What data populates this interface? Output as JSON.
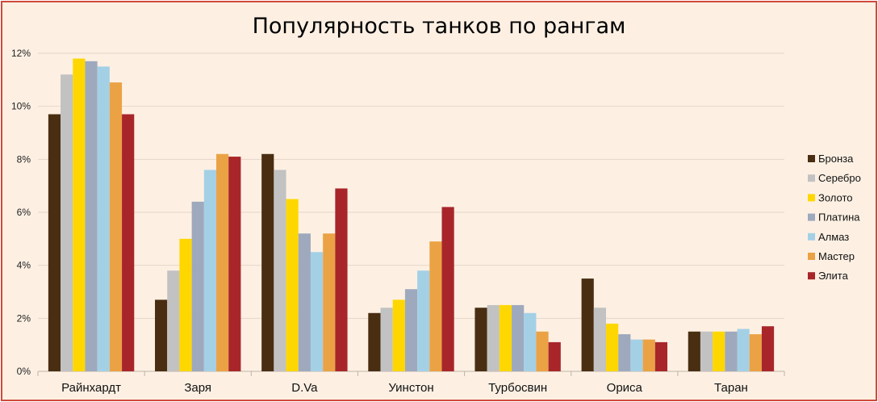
{
  "chart_data": {
    "type": "bar",
    "title": "Популярность танков по рангам",
    "categories": [
      "Райнхардт",
      "Заря",
      "D.Va",
      "Уинстон",
      "Турбосвин",
      "Ориса",
      "Таран"
    ],
    "series": [
      {
        "name": "Бронза",
        "color": "#4a2e12",
        "values": [
          9.7,
          2.7,
          8.2,
          2.2,
          2.4,
          3.5,
          1.5
        ]
      },
      {
        "name": "Серебро",
        "color": "#c2c2c2",
        "values": [
          11.2,
          3.8,
          7.6,
          2.4,
          2.5,
          2.4,
          1.5
        ]
      },
      {
        "name": "Золото",
        "color": "#ffd700",
        "values": [
          11.8,
          5.0,
          6.5,
          2.7,
          2.5,
          1.8,
          1.5
        ]
      },
      {
        "name": "Платина",
        "color": "#9fa9bd",
        "values": [
          11.7,
          6.4,
          5.2,
          3.1,
          2.5,
          1.4,
          1.5
        ]
      },
      {
        "name": "Алмаз",
        "color": "#a4d0e6",
        "values": [
          11.5,
          7.6,
          4.5,
          3.8,
          2.2,
          1.2,
          1.6
        ]
      },
      {
        "name": "Мастер",
        "color": "#eba245",
        "values": [
          10.9,
          8.2,
          5.2,
          4.9,
          1.5,
          1.2,
          1.4
        ]
      },
      {
        "name": "Элита",
        "color": "#a8262a",
        "values": [
          9.7,
          8.1,
          6.9,
          6.2,
          1.1,
          1.1,
          1.7
        ]
      }
    ],
    "ylim": [
      0,
      12
    ],
    "yticks": [
      "0%",
      "2%",
      "4%",
      "6%",
      "8%",
      "10%",
      "12%"
    ],
    "grid": true,
    "legend_position": "right"
  }
}
